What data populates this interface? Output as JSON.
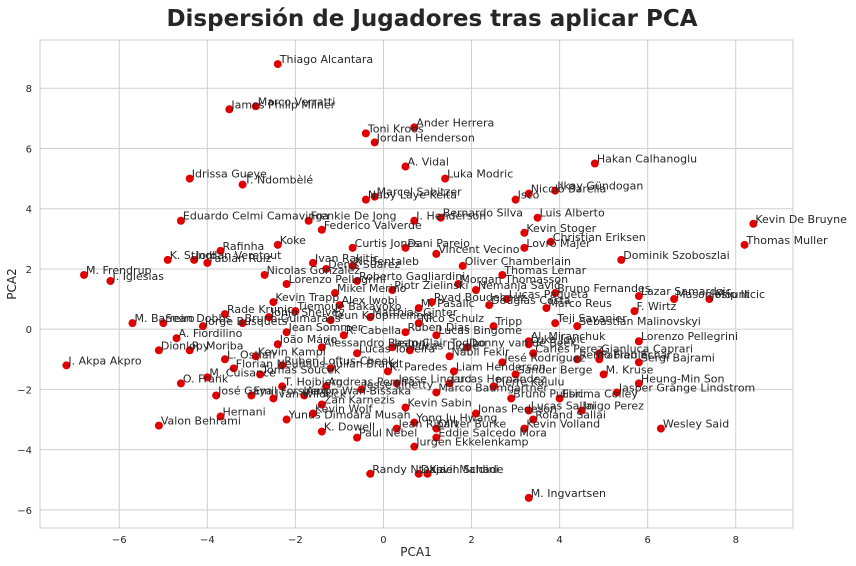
{
  "chart_data": {
    "type": "scatter",
    "title": "Dispersión de Jugadores tras aplicar PCA",
    "xlabel": "PCA1",
    "ylabel": "PCA2",
    "xlim": [
      -7.8,
      9.3
    ],
    "ylim": [
      -6.6,
      9.6
    ],
    "xticks": [
      -6,
      -4,
      -2,
      0,
      2,
      4,
      6,
      8
    ],
    "yticks": [
      -6,
      -4,
      -2,
      0,
      2,
      4,
      6,
      8
    ],
    "grid": true,
    "point_color": "#e00000",
    "points": [
      {
        "label": "Thiago Alcantara",
        "x": -2.4,
        "y": 8.8
      },
      {
        "label": "Marco Verratti",
        "x": -2.9,
        "y": 7.4
      },
      {
        "label": "James Philip Milner",
        "x": -3.5,
        "y": 7.3
      },
      {
        "label": "Ander Herrera",
        "x": 0.7,
        "y": 6.7
      },
      {
        "label": "Toni Kroos",
        "x": -0.4,
        "y": 6.5
      },
      {
        "label": "Jordan Henderson",
        "x": -0.2,
        "y": 6.2
      },
      {
        "label": "A. Vidal",
        "x": 0.5,
        "y": 5.4
      },
      {
        "label": "Hakan Calhanoglu",
        "x": 4.8,
        "y": 5.5
      },
      {
        "label": "Luka Modric",
        "x": 1.4,
        "y": 5.0
      },
      {
        "label": "Idrissa Gueye",
        "x": -4.4,
        "y": 5.0
      },
      {
        "label": "T. Ndombèlé",
        "x": -3.2,
        "y": 4.8
      },
      {
        "label": "Marcel Sabitzer",
        "x": -0.2,
        "y": 4.4
      },
      {
        "label": "Naby Laye Keita",
        "x": -0.4,
        "y": 4.3
      },
      {
        "label": "Nicolò Barella",
        "x": 3.3,
        "y": 4.5
      },
      {
        "label": "Ilkay Gündogan",
        "x": 3.9,
        "y": 4.6
      },
      {
        "label": "Isco",
        "x": 3.0,
        "y": 4.3
      },
      {
        "label": "Luis Alberto",
        "x": 3.5,
        "y": 3.7
      },
      {
        "label": "Kevin De Bruyne",
        "x": 8.4,
        "y": 3.5
      },
      {
        "label": "Eduardo Celmi Camavinga",
        "x": -4.6,
        "y": 3.6
      },
      {
        "label": "Frenkie De Jong",
        "x": -1.7,
        "y": 3.6
      },
      {
        "label": "Federico Valverde",
        "x": -1.4,
        "y": 3.3
      },
      {
        "label": "J. Henderson",
        "x": 0.7,
        "y": 3.6
      },
      {
        "label": "Bernardo Silva",
        "x": 1.3,
        "y": 3.7
      },
      {
        "label": "Kevin Stoger",
        "x": 3.2,
        "y": 3.2
      },
      {
        "label": "Christian Eriksen",
        "x": 3.8,
        "y": 2.9
      },
      {
        "label": "Thomas Muller",
        "x": 8.2,
        "y": 2.8
      },
      {
        "label": "Lovro Majer",
        "x": 3.2,
        "y": 2.7
      },
      {
        "label": "Rafinha",
        "x": -3.7,
        "y": 2.6
      },
      {
        "label": "Koke",
        "x": -2.4,
        "y": 2.8
      },
      {
        "label": "Curtis Jones",
        "x": -0.7,
        "y": 2.7
      },
      {
        "label": "Dani Parejo",
        "x": 0.5,
        "y": 2.7
      },
      {
        "label": "Dominik Szoboszlai",
        "x": 5.4,
        "y": 2.3
      },
      {
        "label": "K. Stindl",
        "x": -4.9,
        "y": 2.3
      },
      {
        "label": "Jordan Veretout",
        "x": -4.3,
        "y": 2.3
      },
      {
        "label": "Fabián Ruiz",
        "x": -4.0,
        "y": 2.2
      },
      {
        "label": "Ivan Rakitic",
        "x": -1.6,
        "y": 2.2
      },
      {
        "label": "Denis Suarez",
        "x": -1.3,
        "y": 2.0
      },
      {
        "label": "N. Bentaleb",
        "x": -0.7,
        "y": 2.1
      },
      {
        "label": "Vincent Vecino",
        "x": 1.2,
        "y": 2.5
      },
      {
        "label": "Oliver Chamberlain",
        "x": 1.8,
        "y": 2.1
      },
      {
        "label": "Thomas Lemar",
        "x": 2.7,
        "y": 1.8
      },
      {
        "label": "M. Frendrup",
        "x": -6.8,
        "y": 1.8
      },
      {
        "label": "J. Iglesias",
        "x": -6.2,
        "y": 1.6
      },
      {
        "label": "Nicolas Gonzalez",
        "x": -2.7,
        "y": 1.8
      },
      {
        "label": "Roberto Gagliardini",
        "x": -0.6,
        "y": 1.6
      },
      {
        "label": "Lorenzo Pellegrini",
        "x": -2.2,
        "y": 1.5
      },
      {
        "label": "Mikel Merino",
        "x": -1.1,
        "y": 1.2
      },
      {
        "label": "Piotr Zielinski",
        "x": 0.2,
        "y": 1.3
      },
      {
        "label": "Morgan Thomasson",
        "x": 1.7,
        "y": 1.5
      },
      {
        "label": "Nemanja Savić",
        "x": 2.1,
        "y": 1.3
      },
      {
        "label": "Bruno Fernandes",
        "x": 3.9,
        "y": 1.2
      },
      {
        "label": "Lucas Paqueta",
        "x": 2.8,
        "y": 1.0
      },
      {
        "label": "Marco Reus",
        "x": 3.7,
        "y": 0.7
      },
      {
        "label": "Lazar Samardzic",
        "x": 5.8,
        "y": 1.1
      },
      {
        "label": "Mason Mount",
        "x": 6.6,
        "y": 1.0
      },
      {
        "label": "Josip Ilicic",
        "x": 7.4,
        "y": 1.0
      },
      {
        "label": "F. Wirtz",
        "x": 5.7,
        "y": 0.6
      },
      {
        "label": "Ryad Boudebouz",
        "x": 1.1,
        "y": 0.9
      },
      {
        "label": "Douglas Costa",
        "x": 2.4,
        "y": 0.8
      },
      {
        "label": "Kevin Trapp",
        "x": -2.5,
        "y": 0.9
      },
      {
        "label": "M. Pasalic",
        "x": 0.8,
        "y": 0.7
      },
      {
        "label": "Alex Iwobi",
        "x": -1.0,
        "y": 0.8
      },
      {
        "label": "Tiemoué Bakayoko",
        "x": -2.0,
        "y": 0.6
      },
      {
        "label": "Rade Krunic",
        "x": -3.6,
        "y": 0.5
      },
      {
        "label": "Jonjo Shelvey",
        "x": -2.6,
        "y": 0.4
      },
      {
        "label": "Teun Koopmeiners",
        "x": -1.2,
        "y": 0.3
      },
      {
        "label": "Matthias Ginter",
        "x": -0.3,
        "y": 0.4
      },
      {
        "label": "Nico Schulz",
        "x": 0.8,
        "y": 0.2
      },
      {
        "label": "Tripp",
        "x": 2.5,
        "y": 0.1
      },
      {
        "label": "Teji Savanier",
        "x": 3.9,
        "y": 0.2
      },
      {
        "label": "Sebastian Malinovskyi",
        "x": 4.4,
        "y": 0.1
      },
      {
        "label": "M. Barreiro",
        "x": -5.7,
        "y": 0.2
      },
      {
        "label": "Sean Dobbs",
        "x": -5.0,
        "y": 0.2
      },
      {
        "label": "Jorge Busquets",
        "x": -4.1,
        "y": 0.1
      },
      {
        "label": "Bruno Guimarães",
        "x": -3.2,
        "y": 0.2
      },
      {
        "label": "Jean Sommer",
        "x": -2.2,
        "y": -0.1
      },
      {
        "label": "R. Cabella",
        "x": -0.9,
        "y": -0.2
      },
      {
        "label": "Lucas Bingome",
        "x": 1.2,
        "y": -0.2
      },
      {
        "label": "Ruben Dias",
        "x": 0.5,
        "y": -0.1
      },
      {
        "label": "A. Fiordilino",
        "x": -4.7,
        "y": -0.3
      },
      {
        "label": "Al. Miranchuk",
        "x": 3.3,
        "y": -0.4
      },
      {
        "label": "Lorenzo Pellegrini",
        "x": 5.8,
        "y": -0.4
      },
      {
        "label": "Dionlopy",
        "x": -5.1,
        "y": -0.7
      },
      {
        "label": "R. Moriba",
        "x": -4.4,
        "y": -0.7
      },
      {
        "label": "João Mário",
        "x": -2.4,
        "y": -0.5
      },
      {
        "label": "Alessandro Bastoni",
        "x": -1.4,
        "y": -0.6
      },
      {
        "label": "Lucas Digne",
        "x": 0.6,
        "y": -0.7
      },
      {
        "label": "Jean-Clair Todibo",
        "x": 0.2,
        "y": -0.6
      },
      {
        "label": "Donny van de Beek",
        "x": 1.9,
        "y": -0.6
      },
      {
        "label": "Luka Jovic",
        "x": 3.3,
        "y": -0.5
      },
      {
        "label": "Carles Perez",
        "x": 3.4,
        "y": -0.8
      },
      {
        "label": "Gianluca Caprari",
        "x": 4.9,
        "y": -0.8
      },
      {
        "label": "Kevin Kampl",
        "x": -2.9,
        "y": -0.9
      },
      {
        "label": "Lucas Torreira",
        "x": -0.6,
        "y": -0.8
      },
      {
        "label": "Nabil Fekir",
        "x": 1.5,
        "y": -0.9
      },
      {
        "label": "Jesé Rodríguez",
        "x": 2.7,
        "y": -1.1
      },
      {
        "label": "Remo Freuler",
        "x": 4.4,
        "y": -1.0
      },
      {
        "label": "Fabian Schar",
        "x": 4.9,
        "y": -1.0
      },
      {
        "label": "Sergi Bajrami",
        "x": 5.8,
        "y": -1.1
      },
      {
        "label": "L. Ostiafr",
        "x": -3.6,
        "y": -1.0
      },
      {
        "label": "Ruben Loftus-Cheek",
        "x": -2.3,
        "y": -1.2
      },
      {
        "label": "Julian Brandt",
        "x": -1.2,
        "y": -1.3
      },
      {
        "label": "Florian Neuhaus",
        "x": -3.4,
        "y": -1.3
      },
      {
        "label": "Tomas Soucek",
        "x": -2.8,
        "y": -1.5
      },
      {
        "label": "K. Paredes",
        "x": 0.1,
        "y": -1.4
      },
      {
        "label": "Liam Henderson",
        "x": 1.6,
        "y": -1.4
      },
      {
        "label": "Sander Berge",
        "x": 3.0,
        "y": -1.5
      },
      {
        "label": "M. Kruse",
        "x": 5.0,
        "y": -1.5
      },
      {
        "label": "M. Cuisance",
        "x": -4.0,
        "y": -1.6
      },
      {
        "label": "O. Frank",
        "x": -4.6,
        "y": -1.8
      },
      {
        "label": "Heung-Min Son",
        "x": 5.8,
        "y": -1.8
      },
      {
        "label": "T. Hojbjerg",
        "x": -2.3,
        "y": -1.9
      },
      {
        "label": "Andreas Pereira",
        "x": -1.3,
        "y": -1.9
      },
      {
        "label": "Jesse Lingard",
        "x": 0.3,
        "y": -1.8
      },
      {
        "label": "Lucas Hernandez",
        "x": 1.5,
        "y": -1.8
      },
      {
        "label": "Pierre Kalulu",
        "x": 2.5,
        "y": -1.9
      },
      {
        "label": "Jasper Grange Lindstrom",
        "x": 5.3,
        "y": -2.1
      },
      {
        "label": "José Gaya",
        "x": -3.8,
        "y": -2.2
      },
      {
        "label": "Emil Forsberg",
        "x": -3.0,
        "y": -2.2
      },
      {
        "label": "Aaron Wan-Bissaka",
        "x": -1.8,
        "y": -2.2
      },
      {
        "label": "Jesse Linetty",
        "x": -0.5,
        "y": -2.0
      },
      {
        "label": "Marco Baumgartner",
        "x": 1.2,
        "y": -2.1
      },
      {
        "label": "Bruno Pulisic",
        "x": 2.9,
        "y": -2.3
      },
      {
        "label": "Ebrima Colley",
        "x": 4.0,
        "y": -2.3
      },
      {
        "label": "Ivan Wildrick",
        "x": -2.5,
        "y": -2.3
      },
      {
        "label": "Zan Karnezis",
        "x": -1.4,
        "y": -2.5
      },
      {
        "label": "Kevin Sabin",
        "x": 0.5,
        "y": -2.6
      },
      {
        "label": "Lucas Sallai",
        "x": 3.3,
        "y": -2.7
      },
      {
        "label": "Jonas Pedeson",
        "x": 2.1,
        "y": -2.8
      },
      {
        "label": "Inigo Perez",
        "x": 4.5,
        "y": -2.7
      },
      {
        "label": "Kevin Wolf",
        "x": -1.6,
        "y": -2.8
      },
      {
        "label": "Hernani",
        "x": -3.7,
        "y": -2.9
      },
      {
        "label": "Yunus Dimoara Musah",
        "x": -2.2,
        "y": -3.0
      },
      {
        "label": "Yong Ju Hwang",
        "x": 0.7,
        "y": -3.1
      },
      {
        "label": "Roland Sallai",
        "x": 3.4,
        "y": -3.0
      },
      {
        "label": "Valon Behrami",
        "x": -5.1,
        "y": -3.2
      },
      {
        "label": "Kevin Volland",
        "x": 3.2,
        "y": -3.3
      },
      {
        "label": "Wesley Said",
        "x": 6.3,
        "y": -3.3
      },
      {
        "label": "K. Dowell",
        "x": -1.4,
        "y": -3.4
      },
      {
        "label": "Jean Ripart",
        "x": 0.3,
        "y": -3.3
      },
      {
        "label": "Oliver Burke",
        "x": 1.2,
        "y": -3.3
      },
      {
        "label": "Paul Nebel",
        "x": -0.6,
        "y": -3.6
      },
      {
        "label": "Eddie Salcedo Mora",
        "x": 1.2,
        "y": -3.6
      },
      {
        "label": "Jurgen Ekkelenkamp",
        "x": 0.7,
        "y": -3.9
      },
      {
        "label": "Randy Ntekja",
        "x": -0.3,
        "y": -4.8
      },
      {
        "label": "Kevin Schade",
        "x": 1.0,
        "y": -4.8
      },
      {
        "label": "Daniel Maldini",
        "x": 0.8,
        "y": -4.8
      },
      {
        "label": "M. Ingvartsen",
        "x": 3.3,
        "y": -5.6
      },
      {
        "label": "J. Akpa Akpro",
        "x": -7.2,
        "y": -1.2
      }
    ]
  }
}
